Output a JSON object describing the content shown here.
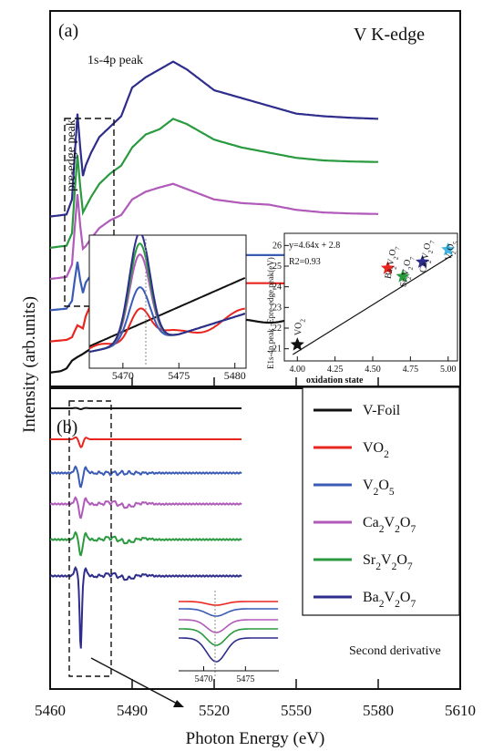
{
  "chart_data": {
    "type": "line",
    "xlabel": "Photon Energy (eV)",
    "ylabel": "Intensity (arb.units)",
    "xlim": [
      5460,
      5610
    ],
    "xticks": [
      5460,
      5490,
      5520,
      5550,
      5580,
      5610
    ],
    "panel_a": {
      "label": "(a)",
      "title": "V K-edge",
      "annotations": [
        "1s-4p peak",
        "pre-edge peak"
      ],
      "xlim": [
        5460,
        5580
      ],
      "series": [
        {
          "name": "V-Foil",
          "color": "#111111",
          "offset": 0.0,
          "x": [
            5460,
            5464,
            5466,
            5468,
            5470,
            5472,
            5474,
            5478,
            5484,
            5490,
            5500,
            5510,
            5520,
            5530,
            5540,
            5550,
            5560,
            5570,
            5580
          ],
          "y": [
            0.02,
            0.05,
            0.1,
            0.25,
            0.32,
            0.38,
            0.45,
            0.55,
            0.7,
            0.9,
            1.05,
            1.08,
            1.12,
            1.0,
            1.03,
            1.05,
            1.15,
            1.05,
            1.06
          ]
        },
        {
          "name": "VO2",
          "color": "#e8261f",
          "offset": 0.25,
          "x": [
            5460,
            5466,
            5468,
            5469,
            5470,
            5471,
            5472,
            5473,
            5475,
            5478,
            5482,
            5486,
            5490,
            5495,
            5500,
            5510,
            5520,
            5530,
            5540,
            5560,
            5580
          ],
          "y": [
            0.02,
            0.05,
            0.1,
            0.22,
            0.33,
            0.3,
            0.27,
            0.5,
            0.75,
            0.9,
            1.0,
            1.05,
            1.14,
            1.22,
            1.22,
            1.2,
            1.16,
            1.14,
            1.14,
            1.13,
            1.13
          ]
        },
        {
          "name": "V2O5",
          "color": "#3a5bb5",
          "offset": 0.5,
          "x": [
            5460,
            5466,
            5468,
            5469,
            5470,
            5471,
            5472,
            5473,
            5475,
            5478,
            5482,
            5486,
            5490,
            5495,
            5500,
            5510,
            5520,
            5530,
            5540,
            5560,
            5580
          ],
          "y": [
            0.02,
            0.05,
            0.2,
            0.6,
            0.95,
            0.6,
            0.35,
            0.55,
            0.7,
            0.85,
            0.95,
            1.0,
            1.07,
            1.15,
            1.18,
            1.15,
            1.1,
            1.08,
            1.08,
            1.08,
            1.08
          ]
        },
        {
          "name": "Ca2V2O7",
          "color": "#b05ab9",
          "offset": 0.75,
          "x": [
            5460,
            5466,
            5468,
            5469,
            5470,
            5471,
            5472,
            5473,
            5475,
            5478,
            5482,
            5486,
            5490,
            5495,
            5500,
            5505,
            5510,
            5520,
            5530,
            5540,
            5550,
            5560,
            5570,
            5580
          ],
          "y": [
            0.02,
            0.06,
            0.3,
            1.0,
            1.65,
            1.05,
            0.6,
            0.65,
            0.8,
            1.0,
            1.15,
            1.25,
            1.55,
            1.7,
            1.78,
            1.85,
            1.75,
            1.55,
            1.48,
            1.45,
            1.35,
            1.3,
            1.28,
            1.27
          ]
        },
        {
          "name": "Sr2V2O7",
          "color": "#2a9a3f",
          "offset": 1.0,
          "x": [
            5460,
            5466,
            5468,
            5469,
            5470,
            5471,
            5472,
            5473,
            5475,
            5478,
            5482,
            5486,
            5490,
            5495,
            5500,
            5505,
            5510,
            5520,
            5530,
            5540,
            5550,
            5560,
            5570,
            5580
          ],
          "y": [
            0.02,
            0.06,
            0.3,
            1.1,
            1.8,
            1.2,
            0.7,
            0.8,
            1.0,
            1.25,
            1.45,
            1.6,
            1.95,
            2.2,
            2.3,
            2.5,
            2.4,
            2.1,
            1.95,
            1.85,
            1.75,
            1.7,
            1.68,
            1.67
          ]
        },
        {
          "name": "Ba2V2O7",
          "color": "#2e2d8c",
          "offset": 1.25,
          "x": [
            5460,
            5466,
            5468,
            5469,
            5470,
            5471,
            5472,
            5473,
            5475,
            5478,
            5482,
            5486,
            5490,
            5495,
            5500,
            5505,
            5510,
            5520,
            5530,
            5540,
            5550,
            5560,
            5570,
            5580
          ],
          "y": [
            0.02,
            0.06,
            0.35,
            1.2,
            2.0,
            1.35,
            0.8,
            1.0,
            1.25,
            1.55,
            1.75,
            1.95,
            2.5,
            2.7,
            2.85,
            3.0,
            2.85,
            2.45,
            2.3,
            2.15,
            2.0,
            1.95,
            1.92,
            1.9
          ]
        }
      ],
      "inset_zoom": {
        "xticks": [
          5470,
          5475,
          5480
        ],
        "xlim": [
          5467,
          5481
        ]
      },
      "inset_scatter": {
        "xlabel": "oxidation state",
        "ylabel": "E1s-4p peak -Epre-edge peak(eV)",
        "xlim": [
          3.95,
          5.05
        ],
        "ylim": [
          20.5,
          26.5
        ],
        "xticks": [
          "4.00",
          "4.25",
          "4.50",
          "4.75",
          "5.00"
        ],
        "yticks": [
          "21",
          "22",
          "23",
          "24",
          "25",
          "26"
        ],
        "fit_text": "y=4.64x + 2.8",
        "r2_text": "R2=0.93",
        "fit": {
          "slope": 4.64,
          "intercept": 2.8
        },
        "points": [
          {
            "label": "VO2",
            "x": 4.0,
            "y": 21.2,
            "color": "#111111"
          },
          {
            "label": "Ba2V2O7",
            "x": 4.6,
            "y": 24.9,
            "color": "#e8261f"
          },
          {
            "label": "Sr2V2O7",
            "x": 4.7,
            "y": 24.5,
            "color": "#2a9a3f"
          },
          {
            "label": "Ca2V2O7",
            "x": 4.83,
            "y": 25.2,
            "color": "#2e2d8c"
          },
          {
            "label": "V2O5",
            "x": 5.0,
            "y": 25.8,
            "color": "#3fb6e3"
          }
        ]
      }
    },
    "panel_b": {
      "label": "(b)",
      "annotation": "Second derivative",
      "legend": [
        {
          "name": "V-Foil",
          "color": "#111111"
        },
        {
          "name": "VO2",
          "color": "#e8261f"
        },
        {
          "name": "V2O5",
          "color": "#3a5bb5"
        },
        {
          "name": "Ca2V2O7",
          "color": "#b05ab9"
        },
        {
          "name": "Sr2V2O7",
          "color": "#2a9a3f"
        },
        {
          "name": "Ba2V2O7",
          "color": "#2e2d8c"
        }
      ],
      "inset_zoom": {
        "xticks": [
          5470,
          5475
        ],
        "xlim": [
          5467,
          5479
        ]
      }
    }
  }
}
